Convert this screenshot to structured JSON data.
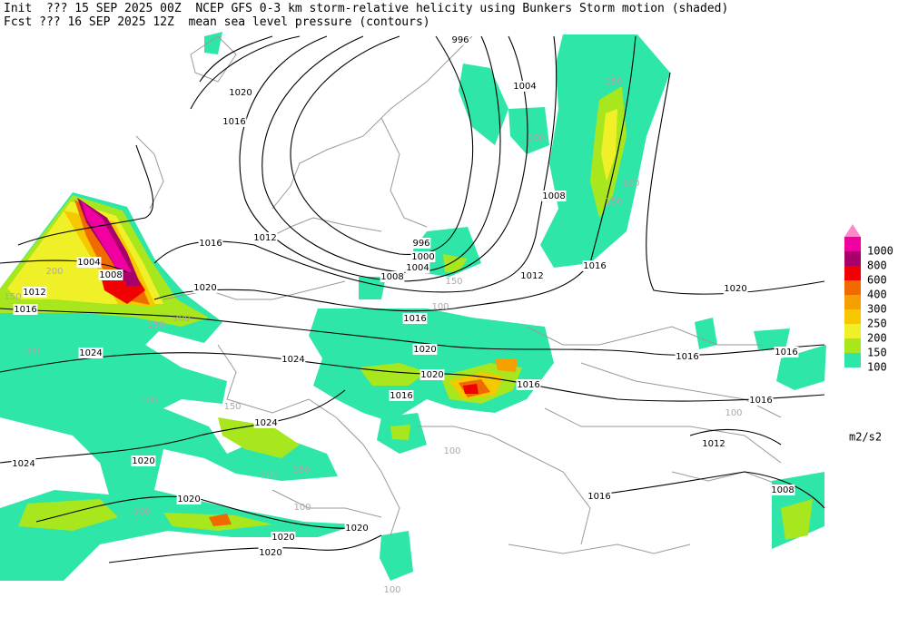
{
  "header": {
    "line1": "Init  ??? 15 SEP 2025 00Z  NCEP GFS 0-3 km storm-relative helicity using Bunkers Storm motion (shaded)",
    "line2": "Fcst ??? 16 SEP 2025 12Z  mean sea level pressure (contours)"
  },
  "legend": {
    "levels": [
      100,
      150,
      200,
      250,
      300,
      400,
      600,
      800,
      1000
    ],
    "colors": [
      "#2ee6a8",
      "#a8e61e",
      "#f0f028",
      "#f5c800",
      "#f5a000",
      "#f06a00",
      "#f00000",
      "#a8006a",
      "#f000a0"
    ],
    "top_color": "#ff88c8",
    "units": "m2/s2"
  },
  "contour_labels": [
    "996",
    "1020",
    "1016",
    "1004",
    "150",
    "100",
    "1008",
    "150",
    "100",
    "1012",
    "1016",
    "996",
    "1000",
    "1004",
    "1008",
    "1012",
    "1016",
    "1020",
    "1004",
    "1008",
    "1012",
    "1016",
    "1020",
    "150",
    "200",
    "150",
    "200",
    "100",
    "1024",
    "1024",
    "1016",
    "1020",
    "1020",
    "1016",
    "1016",
    "1016",
    "1016",
    "1016",
    "1012",
    "100",
    "1024",
    "1024",
    "1020",
    "1020",
    "100",
    "1020",
    "1020",
    "1020",
    "100",
    "150",
    "150",
    "100",
    "100",
    "1016",
    "1008",
    "100",
    "100",
    "150",
    "100"
  ]
}
